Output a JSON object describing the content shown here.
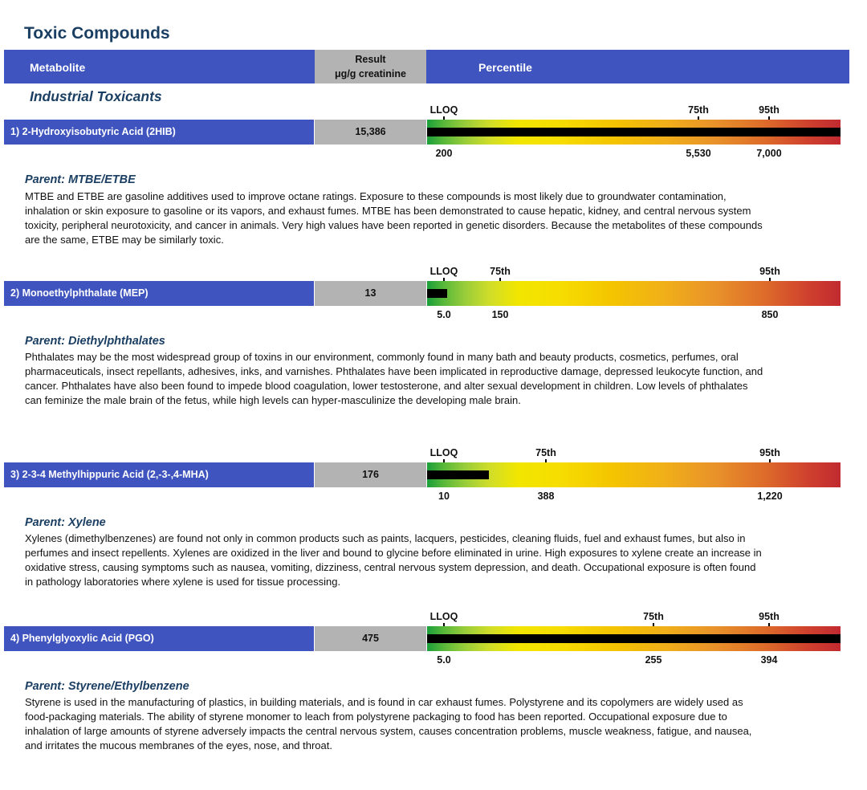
{
  "page": {
    "title": "Toxic Compounds",
    "header": {
      "metabolite": "Metabolite",
      "result_line1": "Result",
      "result_line2": "μg/g  creatinine",
      "percentile": "Percentile"
    },
    "section": "Industrial Toxicants"
  },
  "rows": [
    {
      "label": "1) 2-Hydroxyisobutyric Acid (2HIB)",
      "result": "15,386",
      "result_value": 15386,
      "marker_labels": [
        "LLOQ",
        "75th",
        "95th"
      ],
      "markers": [
        "200",
        "5,530",
        "7,000"
      ],
      "parent_title": "Parent:  MTBE/ETBE",
      "parent_text": "MTBE and ETBE are gasoline additives used to improve octane ratings.  Exposure to these compounds is most likely due to groundwater contamination, inhalation or skin exposure to gasoline or its vapors, and exhaust fumes.  MTBE has been demonstrated to cause hepatic, kidney, and central nervous system toxicity, peripheral neurotoxicity, and cancer in animals. Very high values have been reported in genetic disorders.  Because the metabolites of these compounds are the same, ETBE may be similarly toxic."
    },
    {
      "label": "2)  Monoethylphthalate (MEP)",
      "result": "13",
      "result_value": 13,
      "marker_labels": [
        "LLOQ",
        "75th",
        "95th"
      ],
      "markers": [
        "5.0",
        "150",
        "850"
      ],
      "parent_title": "Parent:  Diethylphthalates",
      "parent_text": "Phthalates may be the most widespread group of toxins in our environment, commonly found in many bath and beauty products, cosmetics, perfumes, oral pharmaceuticals, insect repellants, adhesives, inks, and varnishes.  Phthalates have been implicated in reproductive damage, depressed leukocyte function, and cancer.  Phthalates have also been found to impede blood coagulation, lower testosterone, and alter sexual development in children.  Low levels of phthalates can feminize the male brain of the fetus, while high levels can hyper-masculinize the developing male brain."
    },
    {
      "label": "3)  2-3-4 Methylhippuric  Acid (2,-3-,4-MHA)",
      "result": "176",
      "result_value": 176,
      "marker_labels": [
        "LLOQ",
        "75th",
        "95th"
      ],
      "markers": [
        "10",
        "388",
        "1,220"
      ],
      "parent_title": "Parent:  Xylene",
      "parent_text": "Xylenes (dimethylbenzenes) are found not only in common products such as paints, lacquers, pesticides, cleaning fluids, fuel and exhaust fumes, but also in perfumes and insect repellents.  Xylenes are oxidized in the liver and bound to glycine before eliminated in urine.  High exposures to xylene create an increase in oxidative stress, causing symptoms such as nausea, vomiting, dizziness, central nervous system depression, and death.  Occupational exposure is often found in pathology laboratories where xylene is used for tissue processing."
    },
    {
      "label": "4)  Phenylglyoxylic Acid (PGO)",
      "result": "475",
      "result_value": 475,
      "marker_labels": [
        "LLOQ",
        "75th",
        "95th"
      ],
      "markers": [
        "5.0",
        "255",
        "394"
      ],
      "parent_title": "Parent:  Styrene/Ethylbenzene",
      "parent_text": "Styrene is used in the manufacturing of plastics, in building materials, and is found in car exhaust fumes.  Polystyrene and its copolymers are widely used as food-packaging materials. The ability of styrene monomer to leach from polystyrene packaging to food has been reported.  Occupational exposure due to inhalation of large amounts of styrene adversely impacts the central nervous system, causes concentration problems, muscle weakness, fatigue, and nausea, and irritates the mucous membranes of the eyes, nose, and throat."
    }
  ]
}
